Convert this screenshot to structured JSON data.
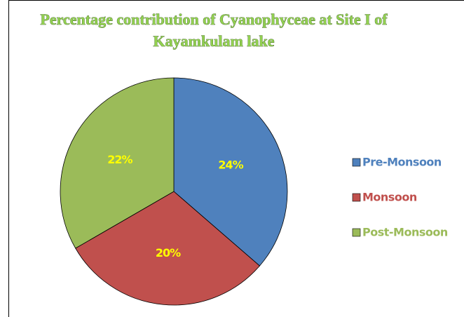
{
  "chart_data": {
    "type": "pie",
    "title": [
      "Percentage contribution of Cyanophyceae at Site I of",
      "Kayamkulam lake"
    ],
    "categories": [
      "Pre-Monsoon",
      "Monsoon",
      "Post-Monsoon"
    ],
    "values": [
      24,
      20,
      22
    ],
    "value_labels": [
      "24%",
      "20%",
      "22%"
    ],
    "colors": [
      "#4f81bd",
      "#c0504d",
      "#9bbb59"
    ],
    "legend": "right"
  }
}
